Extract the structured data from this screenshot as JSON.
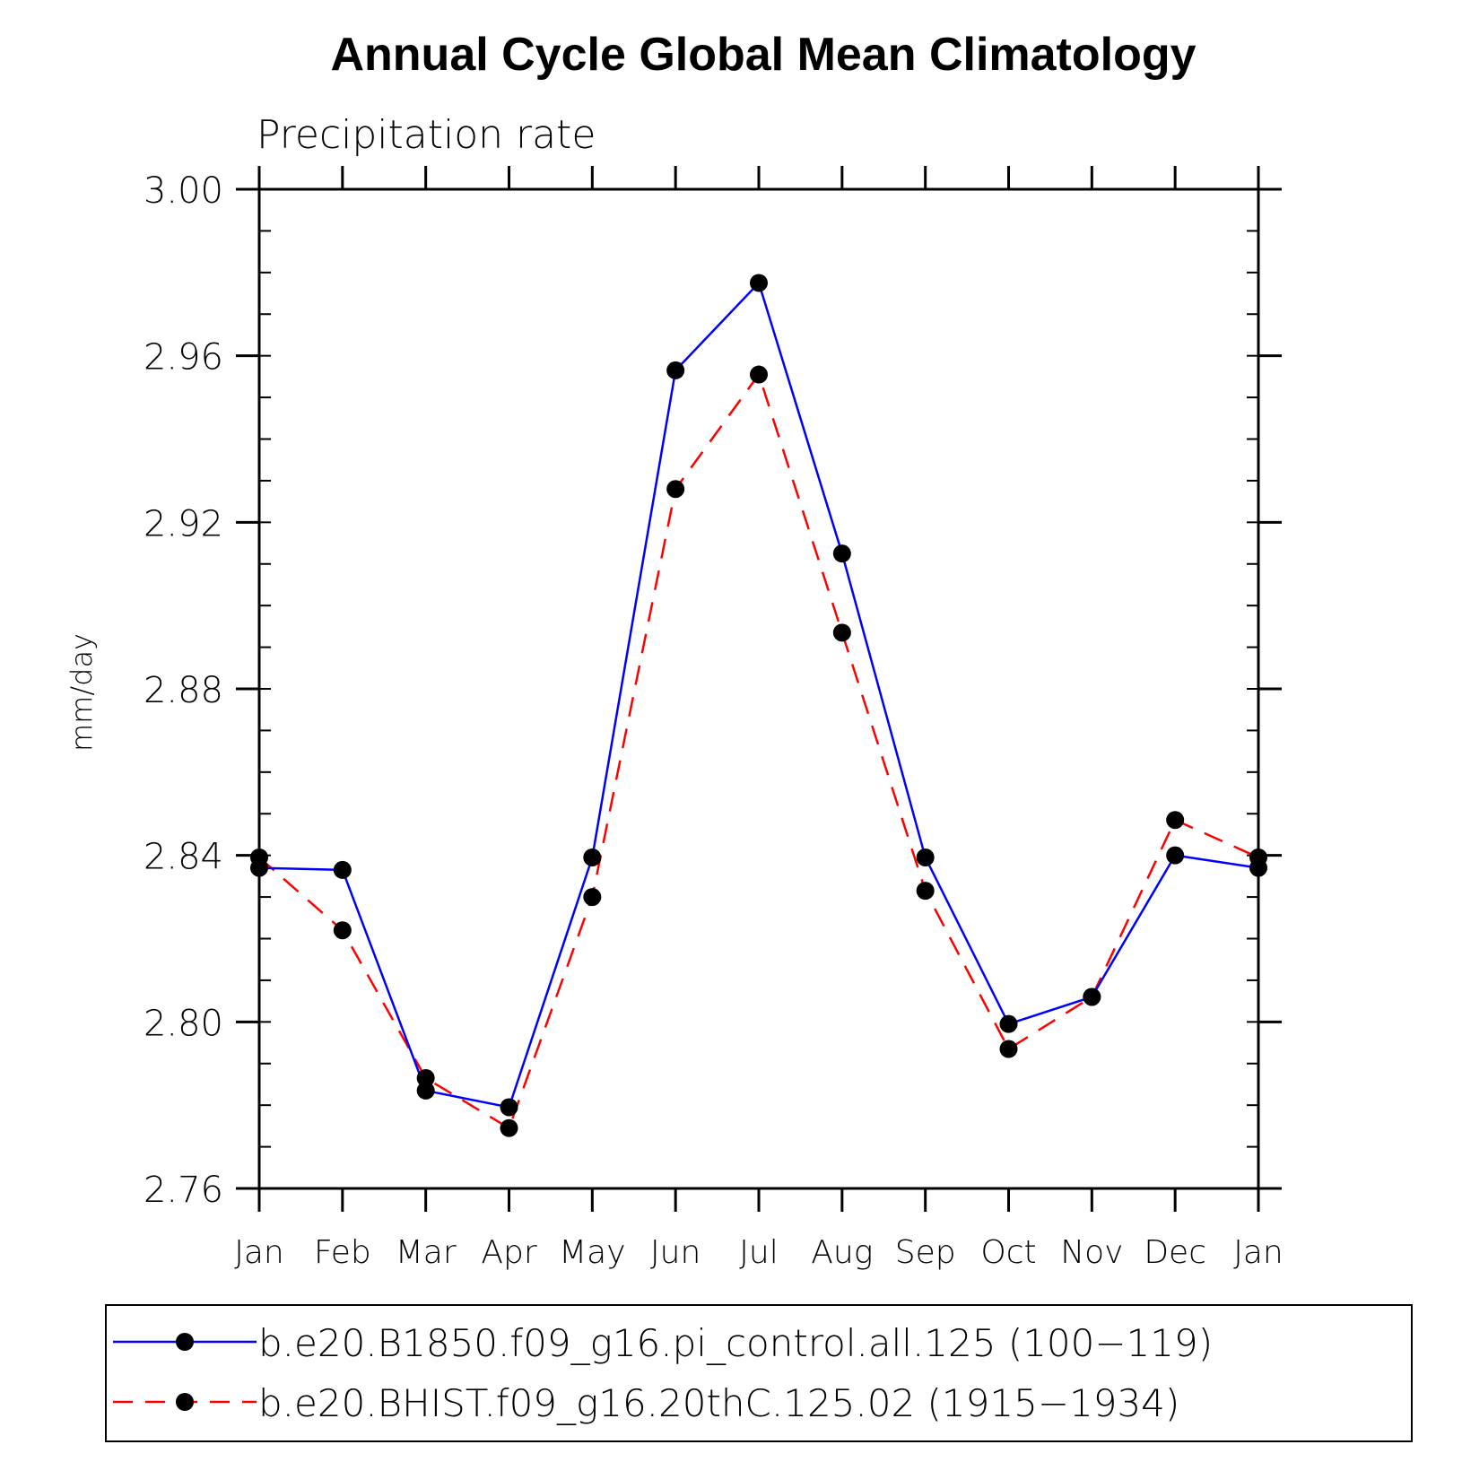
{
  "chart_data": {
    "type": "line",
    "title": "Annual Cycle Global Mean Climatology",
    "subtitle": "Precipitation rate",
    "xlabel": "",
    "ylabel": "mm/day",
    "ylim": [
      2.76,
      3.0
    ],
    "yticks": [
      "2.76",
      "2.80",
      "2.84",
      "2.88",
      "2.92",
      "2.96",
      "3.00"
    ],
    "ytick_values": [
      2.76,
      2.8,
      2.84,
      2.88,
      2.92,
      2.96,
      3.0
    ],
    "categories": [
      "Jan",
      "Feb",
      "Mar",
      "Apr",
      "May",
      "Jun",
      "Jul",
      "Aug",
      "Sep",
      "Oct",
      "Nov",
      "Dec",
      "Jan"
    ],
    "grid": false,
    "legend_position": "bottom",
    "series": [
      {
        "name": "b.e20.B1850.f09_g16.pi_control.all.125 (100−119)",
        "color": "#0000ff",
        "dash": "solid",
        "values": [
          2.837,
          2.8365,
          2.7835,
          2.7795,
          2.8395,
          2.9565,
          2.9775,
          2.9125,
          2.8395,
          2.7995,
          2.806,
          2.84,
          2.837
        ]
      },
      {
        "name": "b.e20.BHIST.f09_g16.20thC.125.02 (1915−1934)",
        "color": "#ff0000",
        "dash": "dashed",
        "values": [
          2.8395,
          2.822,
          2.7865,
          2.7745,
          2.83,
          2.928,
          2.9555,
          2.8935,
          2.8315,
          2.7935,
          2.806,
          2.8485,
          2.8395
        ]
      }
    ]
  }
}
